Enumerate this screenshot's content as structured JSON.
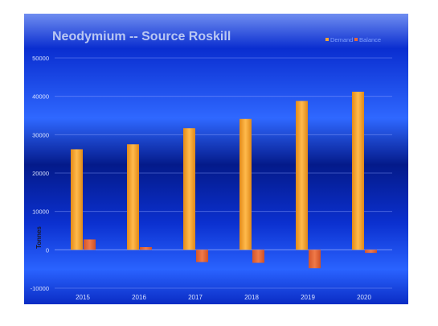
{
  "chart_data": {
    "type": "bar",
    "title": "Neodymium -- Source Roskill",
    "xlabel": "",
    "ylabel": "Tonnes",
    "categories": [
      "2015",
      "2016",
      "2017",
      "2018",
      "2019",
      "2020"
    ],
    "series": [
      {
        "name": "Demand",
        "color": "#f6a533",
        "values": [
          26200,
          27500,
          31700,
          34100,
          38800,
          41200
        ]
      },
      {
        "name": "Balance",
        "color": "#e8683a",
        "values": [
          2700,
          700,
          -3200,
          -3400,
          -4800,
          -800
        ]
      }
    ],
    "ylim": [
      -10000,
      50000
    ],
    "yticks": [
      -10000,
      0,
      10000,
      20000,
      30000,
      40000,
      50000
    ],
    "grid": true,
    "legend": "top-right",
    "colors": {
      "background_top": "#0a2fd6",
      "background_mid": "#2b62ff",
      "background_dark": "#041a8a",
      "title": "#b9c7f2",
      "tick_text": "#d9e2ff",
      "legend_text": "#7f9fff"
    }
  }
}
